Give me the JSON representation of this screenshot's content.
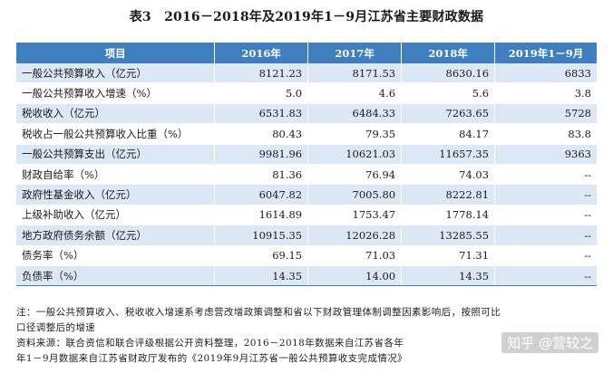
{
  "title": "表3　2016－2018年及2019年1－9月江苏省主要财政数据",
  "columns": [
    "项目",
    "2016年",
    "2017年",
    "2018年",
    "2019年1－9月"
  ],
  "rows": [
    [
      "一般公共预算收入（亿元）",
      "8121.23",
      "8171.53",
      "8630.16",
      "6833"
    ],
    [
      "一般公共预算收入增速（%）",
      "5.0",
      "4.6",
      "5.6",
      "3.8"
    ],
    [
      "税收收入（亿元）",
      "6531.83",
      "6484.33",
      "7263.65",
      "5728"
    ],
    [
      "税收占一般公共预算收入比重（%）",
      "80.43",
      "79.35",
      "84.17",
      "83.8"
    ],
    [
      "一般公共预算支出（亿元）",
      "9981.96",
      "10621.03",
      "11657.35",
      "9363"
    ],
    [
      "财政自给率（%）",
      "81.36",
      "76.94",
      "74.03",
      "--"
    ],
    [
      "政府性基金收入（亿元）",
      "6047.82",
      "7005.80",
      "8222.81",
      "--"
    ],
    [
      "上级补助收入（亿元）",
      "1614.89",
      "1753.47",
      "1778.14",
      "--"
    ],
    [
      "地方政府债务余额（亿元）",
      "10915.35",
      "12026.28",
      "13285.55",
      "--"
    ],
    [
      "债务率（%）",
      "69.15",
      "71.03",
      "71.31",
      "--"
    ],
    [
      "负债率（%）",
      "14.35",
      "14.00",
      "14.35",
      "--"
    ]
  ],
  "notes": {
    "line1": "注：一般公共预算收入、税收收入增速系考虑营改增政策调整和省以下财政管理体制调整因素影响后，按照可比",
    "line2": "口径调整后的增速",
    "line3": "资料来源：联合资信和联合评级根据公开资料整理，2016－2018年数据来自江苏省各年",
    "line4": "年1－9月数据来自江苏省财政厅发布的《2019年9月江苏省一般公共预算收支完成情况》"
  },
  "watermark": "知乎 @营较之",
  "colors": {
    "header_bg": "#3f7fc0",
    "stripe_bg": "#dce8f6"
  }
}
